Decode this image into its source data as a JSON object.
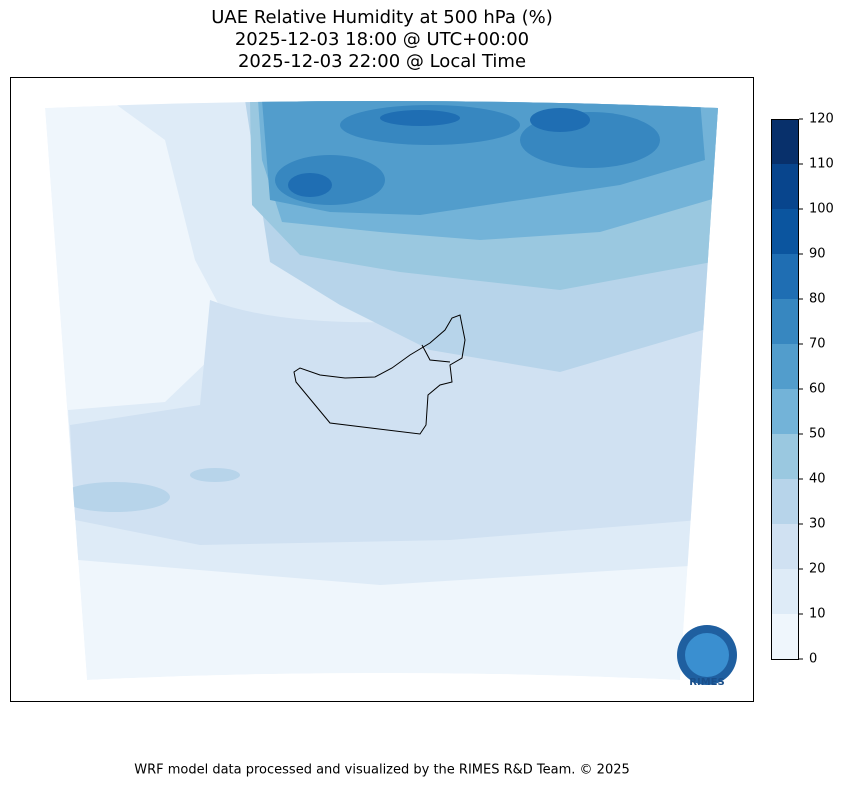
{
  "header": {
    "title_lines": [
      "UAE Relative Humidity at 500 hPa (%)",
      "2025-12-03 18:00 @ UTC+00:00",
      "2025-12-03 22:00 @ Local Time"
    ]
  },
  "colorbar": {
    "ticks": [
      0,
      10,
      20,
      30,
      40,
      50,
      60,
      70,
      80,
      90,
      100,
      110,
      120
    ],
    "colors": [
      "#eff6fc",
      "#deebf7",
      "#d0e1f2",
      "#b7d4ea",
      "#9ac8e0",
      "#73b3d8",
      "#529dcc",
      "#3787c0",
      "#1f6eb3",
      "#0b559f",
      "#08458d",
      "#08306b"
    ]
  },
  "logo": {
    "text": "RIMES"
  },
  "footer": {
    "text": "WRF model data processed and visualized by the RIMES R&D Team. © 2025"
  }
}
